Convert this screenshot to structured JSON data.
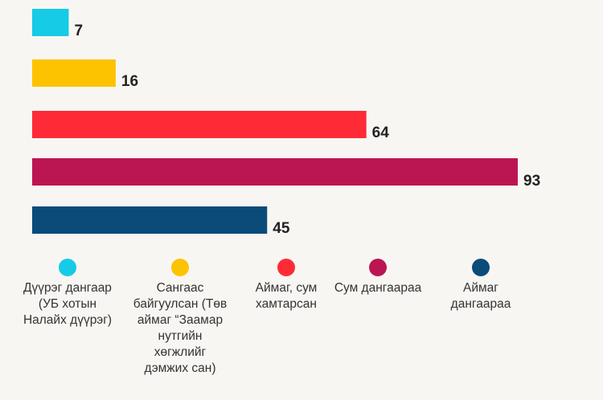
{
  "chart_data": {
    "type": "bar",
    "orientation": "horizontal",
    "categories": [
      "Дүүрэг дангаар (УБ хотын Налайх дүүрэг)",
      "Сангаас байгуулсан (Төв аймаг “Заамар нутгийн хөгжлийг дэмжих сан)",
      "Аймаг, сум хамтарсан",
      "Сум дангаараа",
      "Аймаг дангаараа"
    ],
    "values": [
      7,
      16,
      64,
      93,
      45
    ],
    "colors": [
      "#16cbe6",
      "#fdc300",
      "#fe2b37",
      "#bb1652",
      "#0a4b7a"
    ],
    "xlim": [
      0,
      93
    ],
    "grid": false,
    "legend_position": "bottom"
  },
  "legend": {
    "items": [
      {
        "label": "Дүүрэг дангаар (УБ хотын Налайх дүүрэг)",
        "color": "#16cbe6"
      },
      {
        "label": "Сангаас байгуулсан (Төв аймаг “Заамар нутгийн хөгжлийг дэмжих сан)",
        "color": "#fdc300"
      },
      {
        "label": "Аймаг, сум хамтарсан",
        "color": "#fe2b37"
      },
      {
        "label": "Сум дангаараа",
        "color": "#bb1652"
      },
      {
        "label": "Аймаг дангаараа",
        "color": "#0a4b7a"
      }
    ]
  }
}
